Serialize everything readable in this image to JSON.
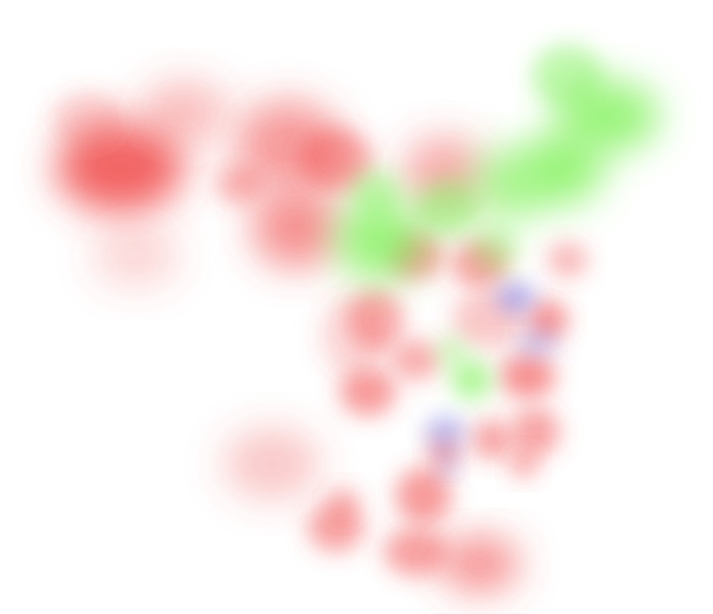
{
  "palette": {
    "background": "#ffffff",
    "red": "#f04848",
    "green": "#78f050",
    "blue": "#6a6ae0"
  }
}
